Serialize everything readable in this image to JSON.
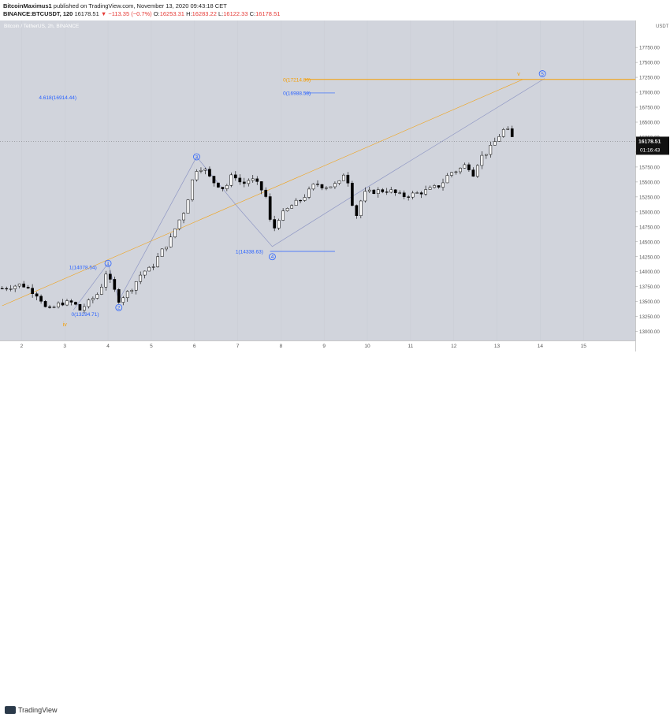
{
  "header": {
    "author": "BitcoinMaximus1",
    "published_text": "published on TradingView.com, November 13, 2020 09:43:18 CET",
    "symbol_line": "BINANCE:BTCUSDT, 120",
    "last": "16178.51",
    "change": "▼ −113.35 (−0.7%)",
    "o_label": "O:",
    "o": "16253.31",
    "h_label": "H:",
    "h": "16283.22",
    "l_label": "L:",
    "l": "16122.33",
    "c_label": "C:",
    "c": "16178.51"
  },
  "chart_title": "Bitcoin / TetherUS, 2h, BINANCE",
  "price_axis": {
    "unit": "USDT",
    "current_price": "16178.51",
    "countdown": "01:16:43"
  },
  "footer": {
    "logo_text": "TradingView"
  },
  "colors": {
    "background": "#d1d4dc",
    "up_candle": "#ffffff",
    "down_candle": "#000000",
    "fib_blue": "#2962ff",
    "wave_orange": "#f59d00",
    "wave_line": "#8f97c4"
  },
  "chart_data": {
    "type": "candlestick",
    "title": "Bitcoin / TetherUS, 2h, BINANCE",
    "ylim": [
      12850,
      18200
    ],
    "y_ticks": [
      13000,
      13250,
      13500,
      13750,
      14000,
      14250,
      14500,
      14750,
      15000,
      15250,
      15500,
      15750,
      16000,
      16250,
      16500,
      16750,
      17000,
      17250,
      17500,
      17750
    ],
    "x_range": [
      1.5,
      16.2
    ],
    "x_ticks": [
      "2",
      "3",
      "4",
      "5",
      "6",
      "7",
      "8",
      "9",
      "10",
      "11",
      "12",
      "13",
      "14",
      "15"
    ],
    "close_path": [
      [
        1.55,
        13720
      ],
      [
        2.0,
        13790
      ],
      [
        2.4,
        13600
      ],
      [
        2.6,
        13330
      ],
      [
        2.9,
        13480
      ],
      [
        3.2,
        13480
      ],
      [
        3.35,
        13360
      ],
      [
        3.6,
        13520
      ],
      [
        3.8,
        13660
      ],
      [
        3.95,
        13980
      ],
      [
        4.05,
        13830
      ],
      [
        4.25,
        13530
      ],
      [
        4.5,
        13680
      ],
      [
        4.8,
        14000
      ],
      [
        5.0,
        14050
      ],
      [
        5.2,
        14300
      ],
      [
        5.45,
        14550
      ],
      [
        5.6,
        14800
      ],
      [
        5.75,
        15000
      ],
      [
        5.9,
        15350
      ],
      [
        6.0,
        15700
      ],
      [
        6.2,
        15750
      ],
      [
        6.4,
        15520
      ],
      [
        6.7,
        15380
      ],
      [
        6.9,
        15650
      ],
      [
        7.1,
        15450
      ],
      [
        7.3,
        15560
      ],
      [
        7.5,
        15430
      ],
      [
        7.65,
        15250
      ],
      [
        7.8,
        14650
      ],
      [
        7.95,
        14900
      ],
      [
        8.2,
        15080
      ],
      [
        8.45,
        15200
      ],
      [
        8.6,
        15300
      ],
      [
        8.8,
        15480
      ],
      [
        9.0,
        15420
      ],
      [
        9.2,
        15440
      ],
      [
        9.4,
        15500
      ],
      [
        9.5,
        15780
      ],
      [
        9.6,
        15250
      ],
      [
        9.75,
        14950
      ],
      [
        9.9,
        15300
      ],
      [
        10.2,
        15350
      ],
      [
        10.5,
        15360
      ],
      [
        10.8,
        15260
      ],
      [
        11.1,
        15300
      ],
      [
        11.4,
        15360
      ],
      [
        11.7,
        15450
      ],
      [
        11.9,
        15650
      ],
      [
        12.1,
        15700
      ],
      [
        12.3,
        15800
      ],
      [
        12.45,
        15640
      ],
      [
        12.6,
        15900
      ],
      [
        12.8,
        16020
      ],
      [
        12.95,
        16170
      ],
      [
        13.1,
        16330
      ],
      [
        13.2,
        16400
      ],
      [
        13.3,
        16300
      ],
      [
        13.4,
        16178.51
      ]
    ],
    "seed": 7,
    "fib_labels": [
      {
        "text": "4.618(16914.44)",
        "x": 2.4,
        "y": 16914.44
      },
      {
        "text": "0(16988.58)",
        "x": 8.05,
        "y": 16988.58
      },
      {
        "text": "1(14338.63)",
        "x": 6.95,
        "y": 14338.63
      },
      {
        "text": "1(14078.54)",
        "x": 3.1,
        "y": 14078.54
      },
      {
        "text": "0(13294.71)",
        "x": 3.15,
        "y": 13294.71
      },
      {
        "text": "0(17214.86)",
        "x": 8.05,
        "y": 17214.86,
        "orange": true
      }
    ],
    "fib_lines": [
      {
        "x1": 8.55,
        "x2": 9.25,
        "y": 16988.58
      },
      {
        "x1": 7.75,
        "x2": 9.25,
        "y": 14338.63
      }
    ],
    "orange_line": {
      "x1": 8.55,
      "x2": 16.2,
      "y": 17214.86
    },
    "wave_labels": [
      {
        "text": "1",
        "x": 4.0,
        "y": 14138,
        "circle": true
      },
      {
        "text": "2",
        "x": 4.25,
        "y": 13400,
        "circle": true
      },
      {
        "text": "3",
        "x": 6.05,
        "y": 15920,
        "circle": true
      },
      {
        "text": "4",
        "x": 7.8,
        "y": 14250,
        "circle": true
      },
      {
        "text": "5",
        "x": 14.05,
        "y": 17310,
        "circle": true
      },
      {
        "text": "iv",
        "x": 3.0,
        "y": 13120,
        "orange": true
      },
      {
        "text": "v",
        "x": 13.5,
        "y": 17310,
        "orange": true
      }
    ],
    "wave_path": [
      [
        3.2,
        13360
      ],
      [
        4.0,
        14138
      ],
      [
        4.25,
        13520
      ],
      [
        6.05,
        15920
      ],
      [
        7.0,
        15080
      ],
      [
        7.8,
        14420
      ],
      [
        9.7,
        15280
      ],
      [
        14.1,
        17230
      ]
    ],
    "orange_trend": [
      [
        1.55,
        13430
      ],
      [
        13.6,
        17214.86
      ]
    ]
  }
}
